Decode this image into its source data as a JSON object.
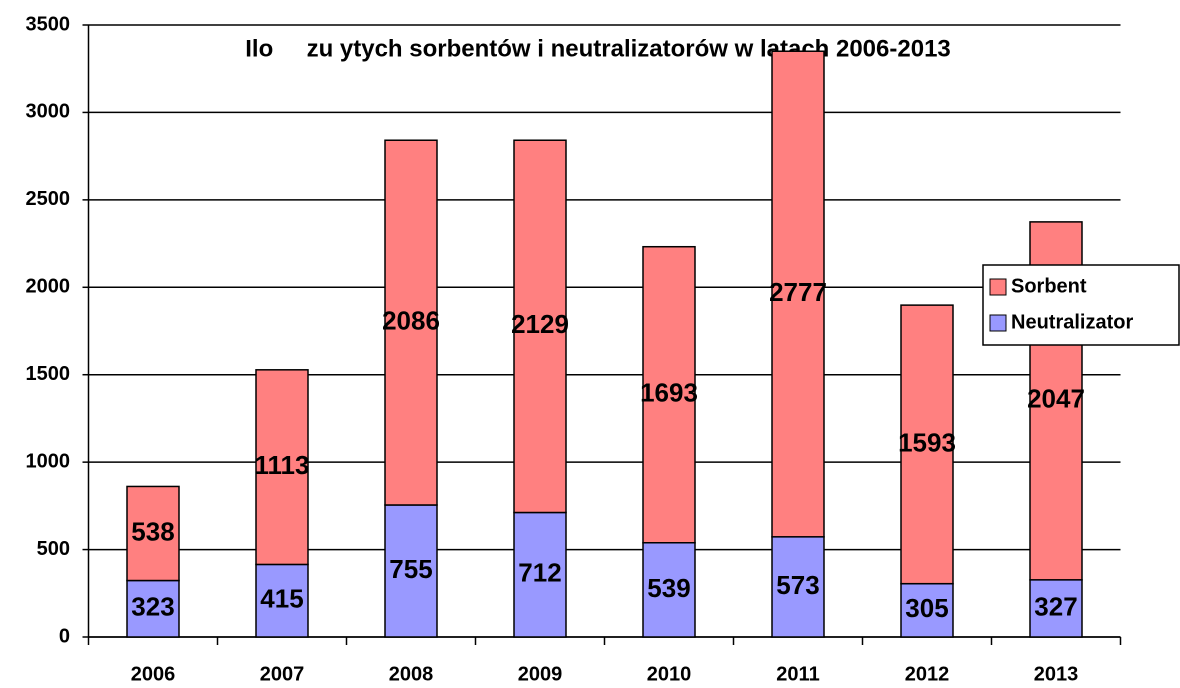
{
  "chart_data": {
    "type": "bar",
    "stacked": true,
    "title": "Ilo     zu ytych sorbentów i neutralizatorów w latach 2006-2013",
    "categories": [
      "2006",
      "2007",
      "2008",
      "2009",
      "2010",
      "2011",
      "2012",
      "2013"
    ],
    "series": [
      {
        "name": "Neutralizator",
        "color": "#9999ff",
        "values": [
          323,
          415,
          755,
          712,
          539,
          573,
          305,
          327
        ]
      },
      {
        "name": "Sorbent",
        "color": "#ff8080",
        "values": [
          538,
          1113,
          2086,
          2129,
          1693,
          2777,
          1593,
          2047
        ]
      }
    ],
    "ylim": [
      0,
      3500
    ],
    "yticks": [
      0,
      500,
      1000,
      1500,
      2000,
      2500,
      3000,
      3500
    ],
    "grid": true,
    "legend": "right"
  }
}
